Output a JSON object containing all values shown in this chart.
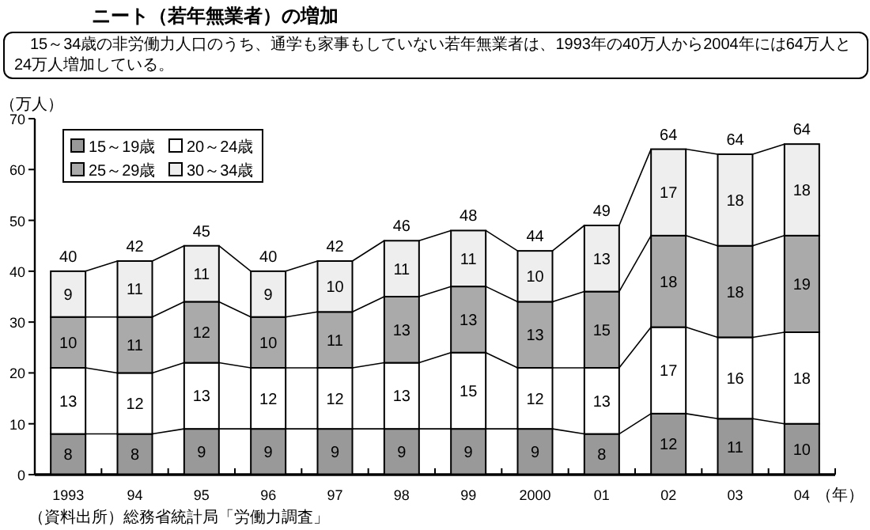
{
  "chart_data": {
    "type": "bar",
    "stacked": true,
    "title": "ニート（若年無業者）の増加",
    "subtitle": "15～34歳の非労働力人口のうち、通学も家事もしていない若年無業者は、1993年の40万人から2004年には64万人と24万人増加している。",
    "xlabel": "（年）",
    "ylabel": "（万人）",
    "annotations": [
      "（資料出所）総務省統計局「労働力調査」"
    ],
    "categories": [
      "1993",
      "94",
      "95",
      "96",
      "97",
      "98",
      "99",
      "2000",
      "01",
      "02",
      "03",
      "04"
    ],
    "series": [
      {
        "name": "15～19歳",
        "color": "#999999",
        "values": [
          8,
          8,
          9,
          9,
          9,
          9,
          9,
          9,
          8,
          12,
          11,
          10
        ]
      },
      {
        "name": "20～24歳",
        "color": "#ffffff",
        "values": [
          13,
          12,
          13,
          12,
          12,
          13,
          15,
          12,
          13,
          17,
          16,
          18
        ]
      },
      {
        "name": "25～29歳",
        "color": "#aaaaaa",
        "values": [
          10,
          11,
          12,
          10,
          11,
          13,
          13,
          13,
          15,
          18,
          18,
          19
        ]
      },
      {
        "name": "30～34歳",
        "color": "#eeeeee",
        "values": [
          9,
          11,
          11,
          9,
          10,
          11,
          11,
          10,
          13,
          17,
          18,
          18
        ]
      }
    ],
    "totals": [
      "40",
      "42",
      "45",
      "40",
      "42",
      "46",
      "48",
      "44",
      "49",
      "64",
      "64",
      "64"
    ],
    "ylim": [
      0,
      70
    ],
    "yticks": [
      0,
      10,
      20,
      30,
      40,
      50,
      60,
      70
    ],
    "data_labels": true,
    "legend": "top left",
    "grid": false
  }
}
